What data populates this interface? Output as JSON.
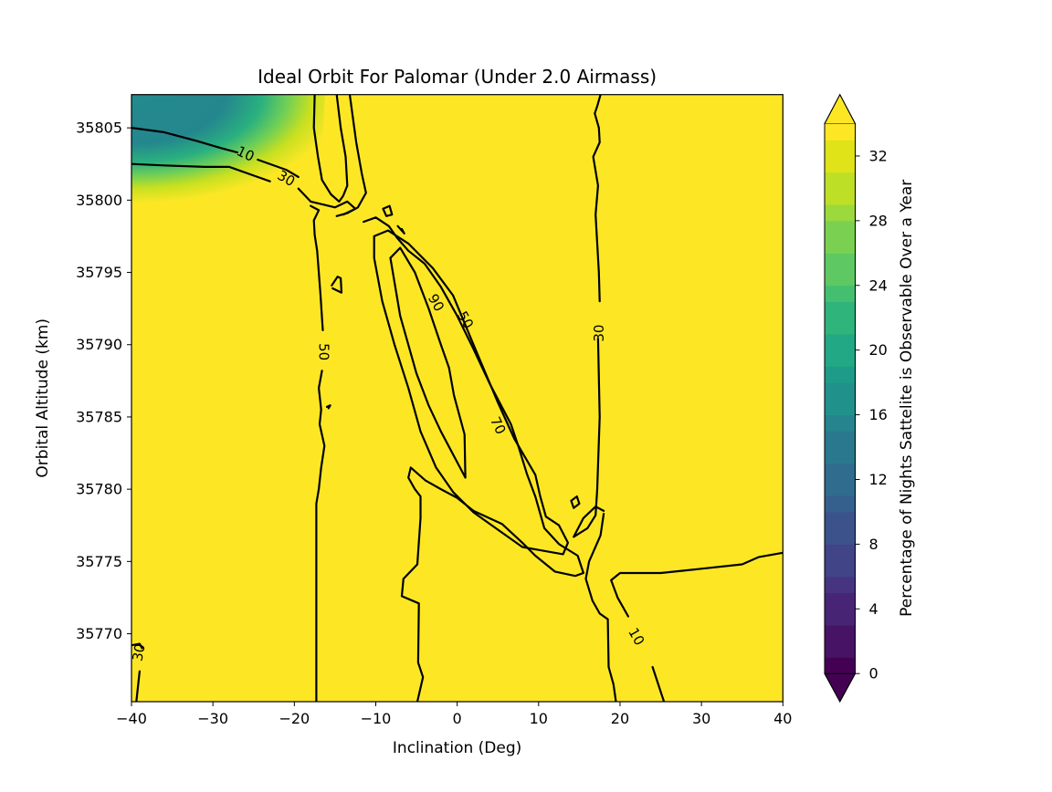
{
  "chart_data": {
    "type": "contourf",
    "title": "Ideal Orbit For Palomar (Under 2.0 Airmass)",
    "xlabel": "Inclination (Deg)",
    "ylabel": "Orbital Altitude (km)",
    "xlim": [
      -40,
      40
    ],
    "ylim": [
      35765.3,
      35807.3
    ],
    "xticks": [
      "−40",
      "−30",
      "−20",
      "−10",
      "0",
      "10",
      "20",
      "30",
      "40"
    ],
    "xtick_values": [
      -40,
      -30,
      -20,
      -10,
      0,
      10,
      20,
      30,
      40
    ],
    "yticks": [
      "35770",
      "35775",
      "35780",
      "35785",
      "35790",
      "35795",
      "35800",
      "35805"
    ],
    "ytick_values": [
      35770,
      35775,
      35780,
      35785,
      35790,
      35795,
      35800,
      35805
    ],
    "background_level_color": "#fde725",
    "dark_region": {
      "description_values": "upper-left corner low percentage region",
      "x_range": [
        -40,
        -18
      ],
      "y_range": [
        35799,
        35807.3
      ],
      "min_value": 14,
      "max_value": 34
    },
    "contour_labels": [
      {
        "text": "10",
        "x": -26,
        "y": 35803.2,
        "rotation": 25
      },
      {
        "text": "30",
        "x": -21,
        "y": 35801.5,
        "rotation": 30
      },
      {
        "text": "50",
        "x": -16.4,
        "y": 35789.5,
        "rotation": 90
      },
      {
        "text": "90",
        "x": -2.6,
        "y": 35792.9,
        "rotation": 60
      },
      {
        "text": "50",
        "x": 1,
        "y": 35791.7,
        "rotation": 60
      },
      {
        "text": "70",
        "x": 5,
        "y": 35784.4,
        "rotation": 65
      },
      {
        "text": "30",
        "x": 17.4,
        "y": 35790.8,
        "rotation": -90
      },
      {
        "text": "10",
        "x": 22,
        "y": 35769.8,
        "rotation": 60
      },
      {
        "text": "30",
        "x": -39.1,
        "y": 35768.7,
        "rotation": -80
      }
    ],
    "contour_lines": [
      {
        "level": 10,
        "points": [
          [
            -40,
            35805
          ],
          [
            -36,
            35804.7
          ],
          [
            -32,
            35804.1
          ],
          [
            -29,
            35803.6
          ],
          [
            -27,
            35803.3
          ]
        ]
      },
      {
        "level": 10,
        "points": [
          [
            -24.5,
            35802.8
          ],
          [
            -21,
            35802.1
          ],
          [
            -19.5,
            35801.6
          ]
        ]
      },
      {
        "level": 30,
        "points": [
          [
            -40,
            35802.5
          ],
          [
            -36,
            35802.4
          ],
          [
            -31,
            35802.3
          ],
          [
            -28,
            35802.3
          ],
          [
            -25,
            35801.7
          ],
          [
            -23,
            35801.3
          ]
        ]
      },
      {
        "level": 30,
        "points": [
          [
            -19.5,
            35800.8
          ],
          [
            -18,
            35799.9
          ],
          [
            -16.5,
            35799.7
          ],
          [
            -15,
            35799.5
          ],
          [
            -13.5,
            35799.9
          ],
          [
            -12.5,
            35799.4
          ],
          [
            -14,
            35799
          ]
        ]
      },
      {
        "level": 50,
        "points": [
          [
            -18,
            35799.6
          ],
          [
            -17,
            35799.3
          ],
          [
            -17.6,
            35798.6
          ],
          [
            -17.5,
            35797.6
          ],
          [
            -17.2,
            35796.5
          ],
          [
            -17,
            35795
          ],
          [
            -16.8,
            35793.5
          ],
          [
            -16.5,
            35791
          ]
        ]
      },
      {
        "level": 50,
        "points": [
          [
            -16.6,
            35788.2
          ],
          [
            -17,
            35787
          ],
          [
            -16.7,
            35785.5
          ],
          [
            -16.9,
            35784.5
          ],
          [
            -16.3,
            35783
          ],
          [
            -16.7,
            35781.5
          ],
          [
            -17,
            35780
          ],
          [
            -17.3,
            35779
          ],
          [
            -17.3,
            35765.3
          ]
        ]
      },
      {
        "level": 50,
        "points": [
          [
            -17.5,
            35807.3
          ],
          [
            -17.6,
            35805
          ],
          [
            -17.1,
            35803
          ],
          [
            -16.6,
            35801.4
          ],
          [
            -15.5,
            35800.4
          ],
          [
            -14.5,
            35799.9
          ],
          [
            -14,
            35800.3
          ],
          [
            -13.5,
            35801
          ],
          [
            -13.7,
            35803
          ],
          [
            -14.3,
            35805
          ],
          [
            -14.8,
            35807.3
          ]
        ]
      },
      {
        "level": 50,
        "points": [
          [
            -13.2,
            35807.3
          ],
          [
            -12.4,
            35804
          ],
          [
            -11.7,
            35801.8
          ],
          [
            -11.2,
            35800.5
          ],
          [
            -12.2,
            35799.5
          ],
          [
            -13.5,
            35799.1
          ],
          [
            -14.8,
            35798.9
          ]
        ]
      },
      {
        "level": 90,
        "points": [
          [
            -15.4,
            35794.1
          ],
          [
            -14.7,
            35794.7
          ],
          [
            -14.3,
            35794.6
          ],
          [
            -14.2,
            35793.6
          ],
          [
            -15.3,
            35793.9
          ]
        ]
      },
      {
        "level": 90,
        "points": [
          [
            -9.1,
            35799.4
          ],
          [
            -8.3,
            35799.6
          ],
          [
            -8,
            35799
          ],
          [
            -8.7,
            35798.9
          ],
          [
            -9.1,
            35799.4
          ]
        ]
      },
      {
        "level": 90,
        "points": [
          [
            -7.3,
            35798.2
          ],
          [
            -6.5,
            35797.7
          ],
          [
            -6.8,
            35798
          ]
        ]
      },
      {
        "level": 90,
        "points": [
          [
            -16,
            35785.7
          ],
          [
            -15.6,
            35785.8
          ],
          [
            -15.8,
            35785.6
          ]
        ]
      },
      {
        "level": 70,
        "points": [
          [
            -10.2,
            35797.5
          ],
          [
            -10.2,
            35796
          ],
          [
            -9.2,
            35793
          ],
          [
            -7.7,
            35790
          ],
          [
            -6,
            35787
          ],
          [
            -4.5,
            35784
          ],
          [
            -2.6,
            35781.5
          ],
          [
            -0.5,
            35779.8
          ],
          [
            2,
            35778.4
          ],
          [
            5,
            35777.2
          ],
          [
            8,
            35776
          ],
          [
            10,
            35775.8
          ],
          [
            13,
            35775.5
          ],
          [
            13.6,
            35776.3
          ],
          [
            12.5,
            35777.5
          ],
          [
            10.9,
            35778.1
          ],
          [
            10.2,
            35779.5
          ],
          [
            9.6,
            35781
          ],
          [
            7,
            35783.5
          ],
          [
            5,
            35786
          ],
          [
            2,
            35790
          ],
          [
            -0.5,
            35793.4
          ],
          [
            -3,
            35795.3
          ],
          [
            -6,
            35797
          ],
          [
            -8.5,
            35797.9
          ],
          [
            -10.2,
            35797.5
          ]
        ]
      },
      {
        "level": 90,
        "points": [
          [
            -8.2,
            35796
          ],
          [
            -7,
            35792
          ],
          [
            -5,
            35788
          ],
          [
            -3.5,
            35785.8
          ],
          [
            -2,
            35784
          ],
          [
            1,
            35780.8
          ],
          [
            0.9,
            35783.8
          ],
          [
            -0.4,
            35786.5
          ],
          [
            -1,
            35788.4
          ],
          [
            -2,
            35790
          ],
          [
            -3.5,
            35792.5
          ],
          [
            -5.2,
            35795
          ],
          [
            -7,
            35796.7
          ],
          [
            -8.2,
            35796
          ]
        ]
      },
      {
        "level": 50,
        "points": [
          [
            -11.5,
            35798.5
          ],
          [
            -10,
            35798.8
          ],
          [
            -8.4,
            35798.2
          ],
          [
            -7.4,
            35797.4
          ],
          [
            -6,
            35796.5
          ],
          [
            -4,
            35795.6
          ],
          [
            -2,
            35794
          ],
          [
            0,
            35792
          ],
          [
            2,
            35789.7
          ],
          [
            4,
            35787.3
          ],
          [
            6.6,
            35784.5
          ],
          [
            7.5,
            35783
          ],
          [
            8.6,
            35781
          ],
          [
            9.6,
            35779.5
          ],
          [
            10.7,
            35777.3
          ],
          [
            12.5,
            35776.2
          ],
          [
            14.8,
            35775.4
          ],
          [
            15.5,
            35774.2
          ],
          [
            14.5,
            35774
          ],
          [
            12,
            35774.3
          ],
          [
            9.6,
            35775.4
          ],
          [
            8,
            35776.3
          ],
          [
            5.5,
            35777.6
          ],
          [
            2,
            35778.5
          ],
          [
            0,
            35779.4
          ],
          [
            -2,
            35780
          ],
          [
            -3.9,
            35780.6
          ],
          [
            -5.7,
            35781.5
          ],
          [
            -6,
            35780.8
          ],
          [
            -5.2,
            35780
          ],
          [
            -4.5,
            35779.5
          ],
          [
            -4.5,
            35778
          ],
          [
            -4.9,
            35774.8
          ],
          [
            -6.6,
            35773.8
          ],
          [
            -6.8,
            35772.6
          ],
          [
            -4.7,
            35772.1
          ],
          [
            -4.8,
            35768
          ],
          [
            -4.2,
            35767
          ],
          [
            -4.9,
            35765.3
          ]
        ]
      },
      {
        "level": 90,
        "points": [
          [
            14,
            35779.2
          ],
          [
            14.7,
            35779.5
          ],
          [
            15,
            35779
          ],
          [
            14.3,
            35778.7
          ],
          [
            14,
            35779.2
          ]
        ]
      },
      {
        "level": 30,
        "points": [
          [
            17.6,
            35807.3
          ],
          [
            17.2,
            35806.5
          ],
          [
            16.9,
            35806
          ],
          [
            17.4,
            35805
          ],
          [
            17.5,
            35804
          ],
          [
            16.7,
            35803
          ],
          [
            17.3,
            35801
          ],
          [
            17,
            35799
          ],
          [
            17.4,
            35795
          ],
          [
            17.5,
            35793
          ]
        ]
      },
      {
        "level": 30,
        "points": [
          [
            17.3,
            35790.4
          ],
          [
            17.5,
            35785
          ],
          [
            17.2,
            35780
          ],
          [
            17,
            35778.2
          ],
          [
            16,
            35777.3
          ],
          [
            14.3,
            35776.7
          ],
          [
            15.5,
            35778
          ],
          [
            17,
            35778.8
          ],
          [
            18,
            35778.5
          ]
        ]
      },
      {
        "level": 10,
        "points": [
          [
            18,
            35778.3
          ],
          [
            17.6,
            35776.8
          ],
          [
            16.2,
            35775
          ],
          [
            15.8,
            35773.8
          ],
          [
            16.6,
            35772.3
          ],
          [
            17.5,
            35771.4
          ],
          [
            18.5,
            35771
          ],
          [
            18.6,
            35767.7
          ],
          [
            19.2,
            35766.5
          ],
          [
            19.5,
            35765.3
          ]
        ]
      },
      {
        "level": 10,
        "points": [
          [
            24,
            35767.7
          ],
          [
            25.4,
            35765.3
          ]
        ]
      },
      {
        "level": 10,
        "points": [
          [
            21,
            35771.2
          ],
          [
            19.7,
            35772.5
          ],
          [
            18.9,
            35773.7
          ],
          [
            20,
            35774.2
          ],
          [
            25,
            35774.2
          ],
          [
            30,
            35774.5
          ],
          [
            35,
            35774.8
          ],
          [
            37,
            35775.3
          ],
          [
            40,
            35775.6
          ]
        ]
      },
      {
        "level": 30,
        "points": [
          [
            -40,
            35769.2
          ],
          [
            -39,
            35769.3
          ],
          [
            -38.7,
            35769
          ]
        ]
      },
      {
        "level": 30,
        "points": [
          [
            -39,
            35767.4
          ],
          [
            -39.4,
            35765.3
          ]
        ]
      }
    ],
    "colorbar": {
      "label": "Percentage of Nights Sattelite is Observable Over a Year",
      "ticks": [
        "0",
        "4",
        "8",
        "12",
        "16",
        "20",
        "24",
        "28",
        "32"
      ],
      "tick_values": [
        0,
        4,
        8,
        12,
        16,
        20,
        24,
        28,
        32
      ],
      "range": [
        0,
        34
      ],
      "colormap": "viridis",
      "extend": "both",
      "under_color": "#440154",
      "over_color": "#fde725"
    }
  }
}
